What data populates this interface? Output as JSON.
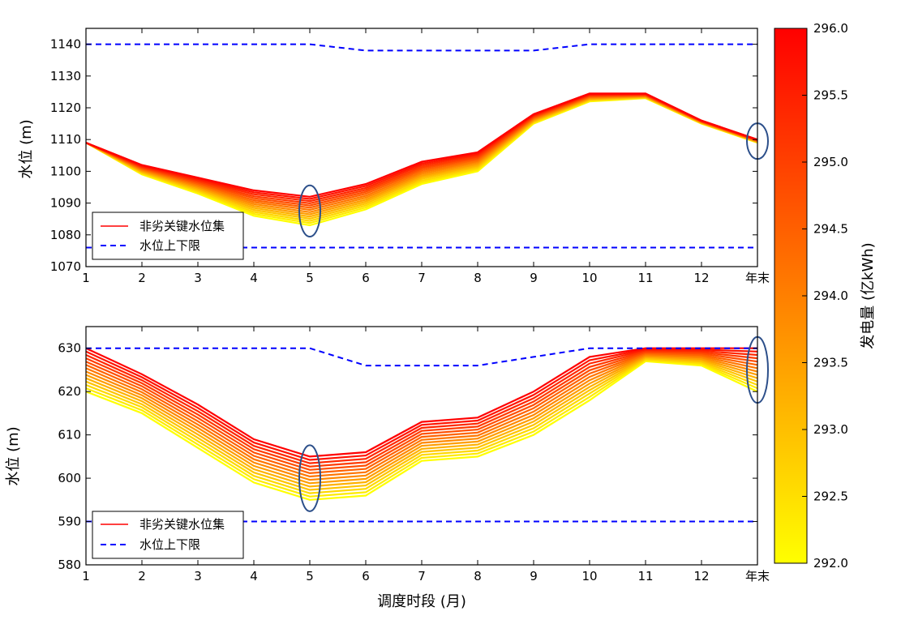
{
  "chart_data": {
    "type": "line",
    "x_categories": [
      "1",
      "2",
      "3",
      "4",
      "5",
      "6",
      "7",
      "8",
      "9",
      "10",
      "11",
      "12",
      "年末"
    ],
    "xlabel": "调度时段 (月)",
    "colorbar": {
      "label": "发电量 (亿kWh)",
      "range": [
        292.0,
        296.0
      ],
      "ticks": [
        "292.0",
        "292.5",
        "293.0",
        "293.5",
        "294.0",
        "294.5",
        "295.0",
        "295.5",
        "296.0"
      ],
      "color_low": "#ffff00",
      "color_high": "#ff0000"
    },
    "legend": {
      "set_label": "非劣关键水位集",
      "bound_label": "水位上下限"
    },
    "bound_color": "#0000ff",
    "highlight_color": "#2c4f8a",
    "panels": [
      {
        "ylabel": "水位 (m)",
        "ylim": [
          1070,
          1145
        ],
        "yticks": [
          "1070",
          "1080",
          "1090",
          "1100",
          "1110",
          "1120",
          "1130",
          "1140"
        ],
        "upper_bound": [
          1140,
          1140,
          1140,
          1140,
          1140,
          1138,
          1138,
          1138,
          1138,
          1140,
          1140,
          1140,
          1140
        ],
        "lower_bound": [
          1076,
          1076,
          1076,
          1076,
          1076,
          1076,
          1076,
          1076,
          1076,
          1076,
          1076,
          1076,
          1076
        ],
        "series_low": [
          1109,
          1099,
          1093,
          1086,
          1083,
          1088,
          1096,
          1100,
          1115,
          1122,
          1123,
          1115,
          1109
        ],
        "series_high": [
          1109,
          1102,
          1098,
          1094,
          1092,
          1096,
          1103,
          1106,
          1118,
          1124.5,
          1124.5,
          1116,
          1110
        ],
        "highlight_periods": [
          "5",
          "年末"
        ]
      },
      {
        "ylabel": "水位 (m)",
        "ylim": [
          580,
          635
        ],
        "yticks": [
          "580",
          "590",
          "600",
          "610",
          "620",
          "630"
        ],
        "upper_bound": [
          630,
          630,
          630,
          630,
          630,
          626,
          626,
          626,
          628,
          630,
          630,
          630,
          630
        ],
        "lower_bound": [
          590,
          590,
          590,
          590,
          590,
          590,
          590,
          590,
          590,
          590,
          590,
          590,
          590
        ],
        "series_low": [
          620,
          615,
          607,
          599,
          595,
          596,
          604,
          605,
          610,
          618,
          627,
          626,
          620
        ],
        "series_high": [
          630,
          624,
          617,
          609,
          605,
          606,
          613,
          614,
          620,
          628,
          630,
          630,
          630
        ],
        "highlight_periods": [
          "5",
          "年末"
        ]
      }
    ]
  }
}
